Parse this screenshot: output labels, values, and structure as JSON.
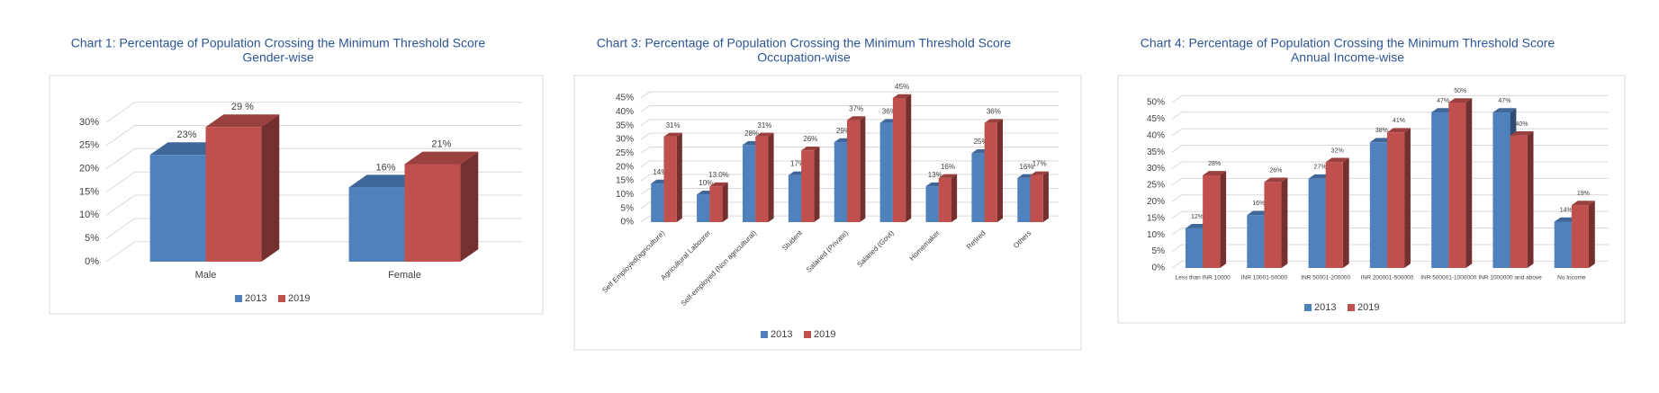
{
  "chart_data": [
    {
      "type": "bar",
      "title": "Chart 1: Percentage of Population Crossing the Minimum Threshold Score",
      "subtitle": "Gender-wise",
      "categories": [
        "Male",
        "Female"
      ],
      "series": [
        {
          "name": "2013",
          "color": "#4f81bd",
          "values": [
            23,
            16
          ],
          "value_labels": [
            "23%",
            "16%"
          ]
        },
        {
          "name": "2019",
          "color": "#c0504d",
          "values": [
            29,
            21
          ],
          "value_labels": [
            "29 %",
            "21%"
          ]
        }
      ],
      "ylim": [
        0,
        30
      ],
      "yticks": [
        {
          "value": 0,
          "label": "0%"
        },
        {
          "value": 5,
          "label": "5%"
        },
        {
          "value": 10,
          "label": "10%"
        },
        {
          "value": 15,
          "label": "15%"
        },
        {
          "value": 20,
          "label": "20%"
        },
        {
          "value": 25,
          "label": "25%"
        },
        {
          "value": 30,
          "label": "30%"
        }
      ],
      "grid": true,
      "legend": "bottom"
    },
    {
      "type": "bar",
      "title": "Chart 3: Percentage of Population Crossing the Minimum Threshold Score",
      "subtitle": "Occupation-wise",
      "categories": [
        "Self Employed(agriculture)",
        "Agricultural Labourer",
        "Self-employed (Non agricultural)",
        "Student",
        "Salaried (Private)",
        "Salaried (Govt)",
        "Homemaker",
        "Retired",
        "Others"
      ],
      "series": [
        {
          "name": "2013",
          "color": "#4f81bd",
          "values": [
            14,
            10,
            28,
            17,
            29,
            36,
            13,
            25,
            16
          ],
          "value_labels": [
            "14%",
            "10%",
            "28%",
            "17%",
            "29%",
            "36%",
            "13%",
            "25%",
            "16%"
          ]
        },
        {
          "name": "2019",
          "color": "#c0504d",
          "values": [
            31,
            13,
            31,
            26,
            37,
            45,
            16,
            36,
            17
          ],
          "value_labels": [
            "31%",
            "13.0%",
            "31%",
            "26%",
            "37%",
            "45%",
            "16%",
            "36%",
            "17%"
          ]
        }
      ],
      "ylim": [
        0,
        45
      ],
      "yticks": [
        {
          "value": 0,
          "label": "0%"
        },
        {
          "value": 5,
          "label": "5%"
        },
        {
          "value": 10,
          "label": "10%"
        },
        {
          "value": 15,
          "label": "15%"
        },
        {
          "value": 20,
          "label": "20%"
        },
        {
          "value": 25,
          "label": "25%"
        },
        {
          "value": 30,
          "label": "30%"
        },
        {
          "value": 35,
          "label": "35%"
        },
        {
          "value": 40,
          "label": "40%"
        },
        {
          "value": 45,
          "label": "45%"
        }
      ],
      "grid": true,
      "legend": "bottom"
    },
    {
      "type": "bar",
      "title": "Chart 4: Percentage of Population Crossing the Minimum Threshold Score",
      "subtitle": "Annual Income-wise",
      "categories": [
        "Less than INR 10000",
        "INR 10001-50000",
        "INR 50001-200000",
        "INR 200001-500000",
        "INR 500001-1000000",
        "INR 1000000 and above",
        "No Income"
      ],
      "series": [
        {
          "name": "2013",
          "color": "#4f81bd",
          "values": [
            12,
            16,
            27,
            38,
            47,
            47,
            14
          ],
          "value_labels": [
            "12%",
            "16%",
            "27%",
            "38%",
            "47%",
            "47%",
            "14%"
          ]
        },
        {
          "name": "2019",
          "color": "#c0504d",
          "values": [
            28,
            26,
            32,
            41,
            50,
            40,
            19
          ],
          "value_labels": [
            "28%",
            "26%",
            "32%",
            "41%",
            "50%",
            "40%",
            "19%"
          ]
        }
      ],
      "ylim": [
        0,
        50
      ],
      "yticks": [
        {
          "value": 0,
          "label": "0%"
        },
        {
          "value": 5,
          "label": "5%"
        },
        {
          "value": 10,
          "label": "10%"
        },
        {
          "value": 15,
          "label": "15%"
        },
        {
          "value": 20,
          "label": "20%"
        },
        {
          "value": 25,
          "label": "25%"
        },
        {
          "value": 30,
          "label": "30%"
        },
        {
          "value": 35,
          "label": "35%"
        },
        {
          "value": 40,
          "label": "40%"
        },
        {
          "value": 45,
          "label": "45%"
        },
        {
          "value": 50,
          "label": "50%"
        }
      ],
      "grid": true,
      "legend": "bottom"
    }
  ]
}
